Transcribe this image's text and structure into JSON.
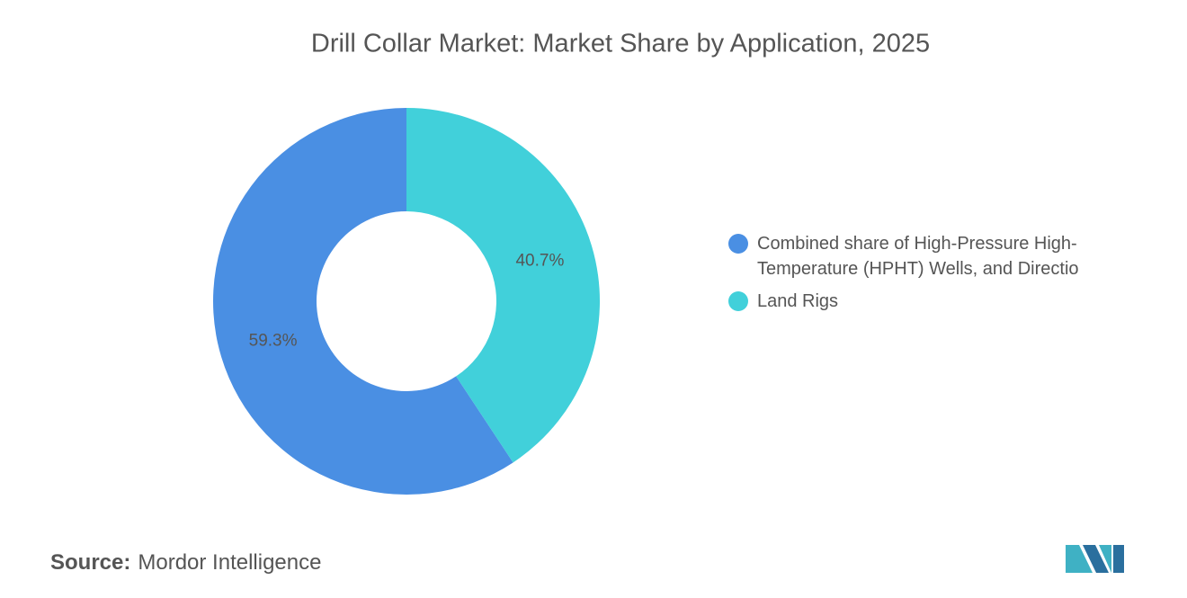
{
  "chart_data": {
    "type": "donut",
    "title": "Drill Collar Market: Market Share by Application, 2025",
    "categories": [
      "Combined share of High-Pressure High-Temperature (HPHT) Wells, and Directio",
      "Land Rigs"
    ],
    "values": [
      59.3,
      40.7
    ],
    "value_labels": [
      "59.3%",
      "40.7%"
    ],
    "colors": [
      "#4a8fe3",
      "#41d0da"
    ],
    "source_label": "Source:",
    "source": "Mordor Intelligence"
  }
}
